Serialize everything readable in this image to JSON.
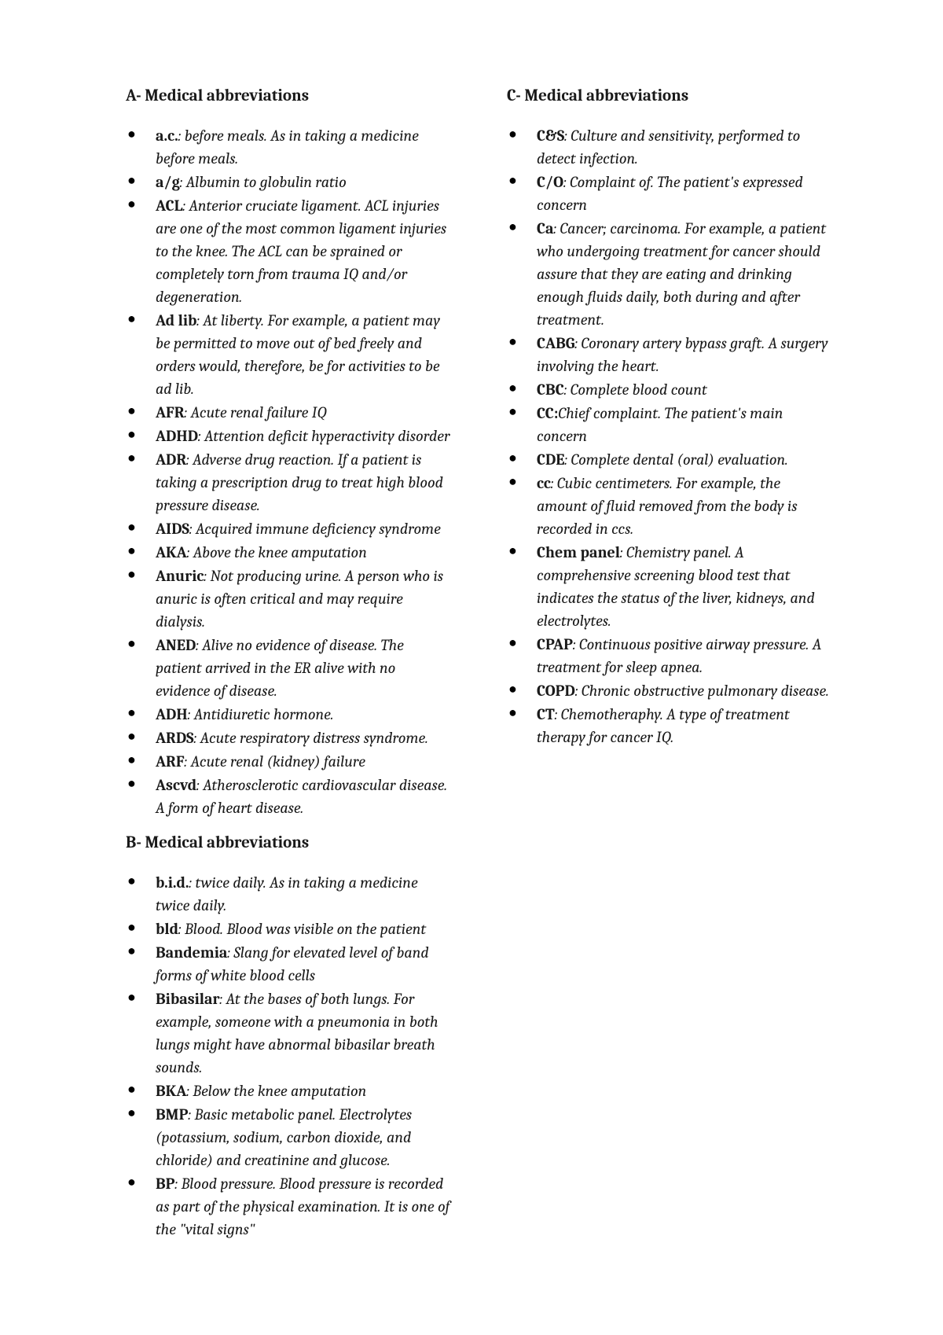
{
  "sections": [
    {
      "heading": "A- Medical abbreviations",
      "items": [
        {
          "term": "a.c.",
          "def": ": before meals. As in taking a medicine before meals."
        },
        {
          "term": "a/g",
          "def": ": Albumin to globulin ratio"
        },
        {
          "term": "ACL",
          "def": ": Anterior cruciate ligament. ACL injuries are one of the most common ligament injuries to the knee. The ACL can be sprained or completely torn from trauma IQ and/or degeneration."
        },
        {
          "term": "Ad lib",
          "def": ": At liberty. For example, a patient may be permitted to move out of bed freely and orders would, therefore, be for activities to be ad lib."
        },
        {
          "term": "AFR",
          "def": ": Acute renal failure IQ"
        },
        {
          "term": "ADHD",
          "def": ": Attention deficit hyperactivity disorder"
        },
        {
          "term": "ADR",
          "def": ": Adverse drug reaction. If a patient is taking a prescription drug to treat high blood pressure disease."
        },
        {
          "term": "AIDS",
          "def": ": Acquired immune deficiency syndrome"
        },
        {
          "term": "AKA",
          "def": ": Above the knee amputation"
        },
        {
          "term": "Anuric",
          "def": ": Not producing urine. A person who is anuric is often critical and may require dialysis."
        },
        {
          "term": "ANED",
          "def": ": Alive no evidence of disease. The patient arrived in the ER alive with no evidence of disease."
        },
        {
          "term": "ADH",
          "def": ": Antidiuretic hormone."
        },
        {
          "term": "ARDS",
          "def": ": Acute respiratory distress syndrome."
        },
        {
          "term": "ARF",
          "def": ": Acute renal (kidney) failure"
        },
        {
          "term": "Ascvd",
          "def": ": Atherosclerotic cardiovascular disease. A form of heart disease."
        }
      ]
    },
    {
      "heading": "B- Medical abbreviations",
      "items": [
        {
          "term": "b.i.d.",
          "def": ": twice daily. As in taking a medicine twice daily."
        },
        {
          "term": "bld",
          "def": ": Blood. Blood was visible on the patient"
        },
        {
          "term": "Bandemia",
          "def": ": Slang for elevated level of band forms of white blood cells"
        },
        {
          "term": "Bibasilar",
          "def": ": At the bases of both lungs. For example, someone with a pneumonia in both lungs might have abnormal bibasilar breath sounds."
        },
        {
          "term": "BKA",
          "def": ": Below the knee amputation"
        },
        {
          "term": "BMP",
          "def": ": Basic metabolic panel. Electrolytes (potassium, sodium, carbon dioxide, and chloride) and creatinine and glucose."
        },
        {
          "term": "BP",
          "def": ": Blood pressure. Blood pressure is recorded as part of the physical examination. It is one of the \"vital signs\""
        }
      ]
    },
    {
      "heading": "C- Medical abbreviations",
      "items": [
        {
          "term": "C&S",
          "def": ": Culture and sensitivity, performed to detect infection."
        },
        {
          "term": "C/O",
          "def": ": Complaint of. The patient's expressed concern"
        },
        {
          "term": "Ca",
          "def": ": Cancer; carcinoma. For example, a patient who undergoing treatment for cancer should assure that they are eating and drinking enough fluids daily, both during and after treatment."
        },
        {
          "term": "CABG",
          "def": ": Coronary artery bypass graft. A surgery involving the heart."
        },
        {
          "term": "CBC",
          "def": ": Complete blood count"
        },
        {
          "term": "CC:",
          "def_plain_lead": " ",
          "def": "Chief complaint. The patient's main concern"
        },
        {
          "term": "CDE",
          "def": ": Complete dental (oral) evaluation."
        },
        {
          "term": "cc",
          "def": ": Cubic centimeters. For example, the amount of fluid removed from the body is recorded in ccs."
        },
        {
          "term": "Chem panel",
          "def": ": Chemistry panel. A comprehensive screening blood test that indicates the status of the liver, kidneys, and electrolytes."
        },
        {
          "term": "CPAP",
          "def": ": Continuous positive airway pressure. A treatment for sleep apnea."
        },
        {
          "term": "COPD",
          "def": ": Chronic obstructive pulmonary disease."
        },
        {
          "term": "CT",
          "def": ": Chemotheraphy. A type of treatment therapy for cancer IQ."
        }
      ]
    }
  ]
}
